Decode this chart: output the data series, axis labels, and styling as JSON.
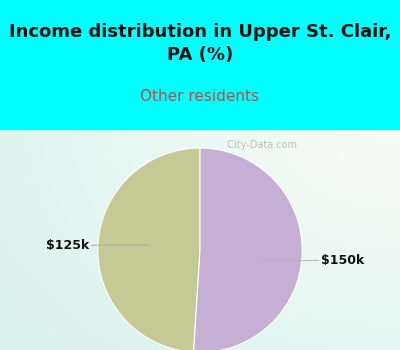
{
  "title": "Income distribution in Upper St. Clair,\nPA (%)",
  "subtitle": "Other residents",
  "slices": [
    49,
    51
  ],
  "labels": [
    "$125k",
    "$150k"
  ],
  "colors": [
    "#c5ca95",
    "#c5afd4"
  ],
  "bg_color": "#00ffff",
  "title_color": "#111111",
  "subtitle_color": "#cc4444",
  "label_color": "#111111",
  "watermark": "  City-Data.com",
  "startangle": 90,
  "title_fontsize": 13,
  "subtitle_fontsize": 11
}
